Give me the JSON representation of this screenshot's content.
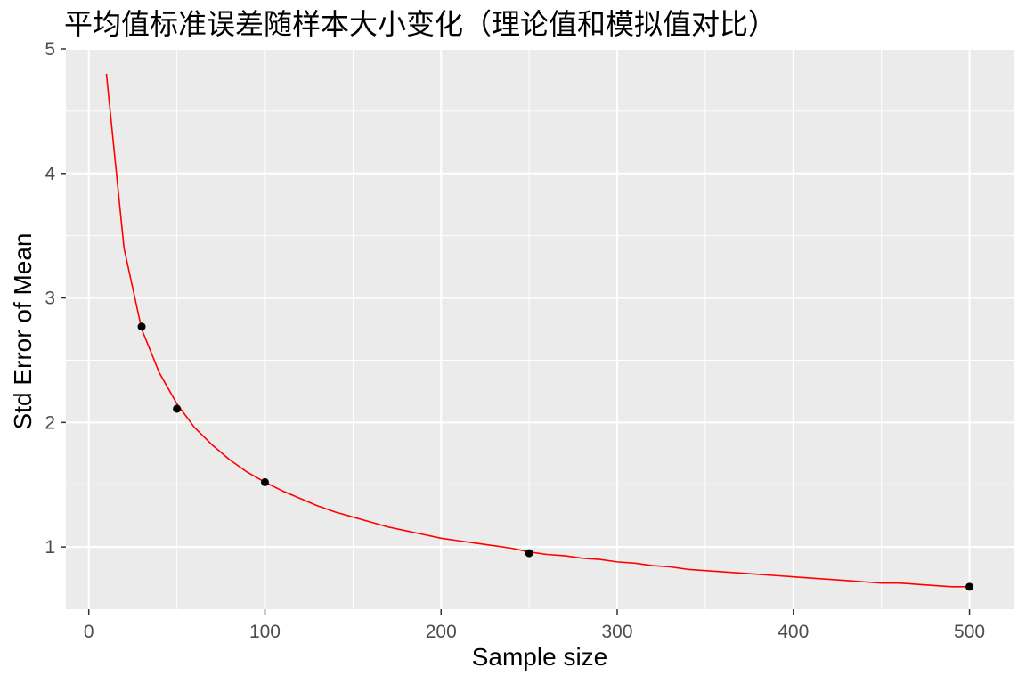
{
  "chart_data": {
    "type": "line",
    "title": "平均值标准误差随样本大小变化（理论值和模拟值对比）",
    "xlabel": "Sample size",
    "ylabel": "Std Error of Mean",
    "xlim": [
      -13,
      525
    ],
    "ylim": [
      0.5,
      5.0
    ],
    "x_ticks": [
      0,
      100,
      200,
      300,
      400,
      500
    ],
    "x_tick_labels": [
      "0",
      "100",
      "200",
      "300",
      "400",
      "500"
    ],
    "y_ticks": [
      1,
      2,
      3,
      4,
      5
    ],
    "y_tick_labels": [
      "1",
      "2",
      "3",
      "4",
      "5"
    ],
    "grid": true,
    "panel_background": "#ebebeb",
    "grid_color": "#ffffff",
    "series": [
      {
        "kind": "line",
        "color": "#ff0000",
        "x": [
          10,
          20,
          30,
          40,
          50,
          60,
          70,
          80,
          90,
          100,
          110,
          120,
          130,
          140,
          150,
          160,
          170,
          180,
          190,
          200,
          210,
          220,
          230,
          240,
          250,
          260,
          270,
          280,
          290,
          300,
          310,
          320,
          330,
          340,
          350,
          360,
          370,
          380,
          390,
          400,
          410,
          420,
          430,
          440,
          450,
          460,
          470,
          480,
          490,
          500
        ],
        "y": [
          4.8,
          3.4,
          2.75,
          2.4,
          2.15,
          1.96,
          1.82,
          1.7,
          1.6,
          1.52,
          1.45,
          1.39,
          1.33,
          1.28,
          1.24,
          1.2,
          1.16,
          1.13,
          1.1,
          1.07,
          1.05,
          1.03,
          1.01,
          0.99,
          0.96,
          0.94,
          0.93,
          0.91,
          0.9,
          0.88,
          0.87,
          0.85,
          0.84,
          0.82,
          0.81,
          0.8,
          0.79,
          0.78,
          0.77,
          0.76,
          0.75,
          0.74,
          0.73,
          0.72,
          0.71,
          0.71,
          0.7,
          0.69,
          0.68,
          0.68
        ]
      },
      {
        "kind": "points",
        "color": "#000000",
        "x": [
          30,
          50,
          100,
          250,
          500
        ],
        "y": [
          2.77,
          2.11,
          1.52,
          0.95,
          0.68
        ]
      }
    ]
  }
}
